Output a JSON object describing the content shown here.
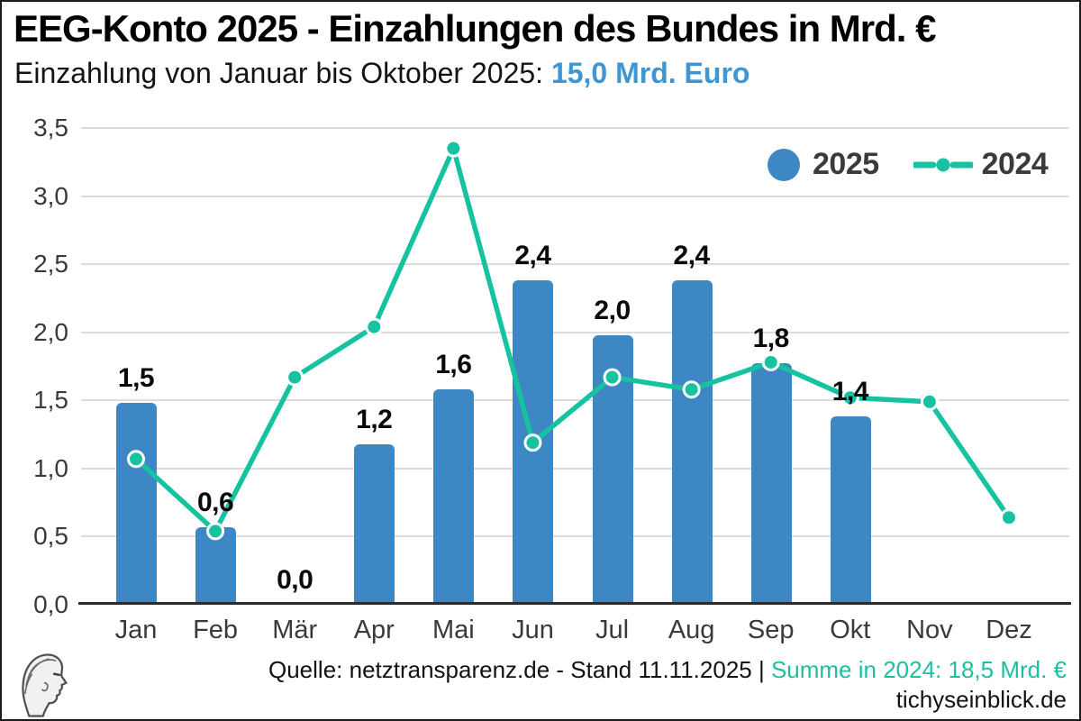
{
  "header": {
    "title": "EEG-Konto 2025 - Einzahlungen des Bundes in Mrd. €",
    "subtitle_prefix": "Einzahlung von Januar bis Oktober 2025: ",
    "subtitle_highlight": "15,0 Mrd. Euro"
  },
  "legend": {
    "label_2025": "2025",
    "label_2024": "2024"
  },
  "chart_data": {
    "type": "bar+line",
    "categories": [
      "Jan",
      "Feb",
      "Mär",
      "Apr",
      "Mai",
      "Jun",
      "Jul",
      "Aug",
      "Sep",
      "Okt",
      "Nov",
      "Dez"
    ],
    "series": [
      {
        "name": "2025",
        "type": "bar",
        "color": "#3e87c5",
        "values": [
          1.48,
          0.57,
          0.0,
          1.18,
          1.58,
          2.38,
          1.98,
          2.38,
          1.77,
          1.38,
          null,
          null
        ],
        "labels": [
          "1,5",
          "0,6",
          "0,0",
          "1,2",
          "1,6",
          "2,4",
          "2,0",
          "2,4",
          "1,8",
          "1,4",
          "",
          ""
        ]
      },
      {
        "name": "2024",
        "type": "line",
        "color": "#16c2a0",
        "values": [
          1.07,
          0.54,
          1.67,
          2.04,
          3.35,
          1.19,
          1.67,
          1.58,
          1.78,
          1.52,
          1.49,
          0.64
        ]
      }
    ],
    "title": "EEG-Konto 2025 - Einzahlungen des Bundes in Mrd. €",
    "xlabel": "",
    "ylabel": "",
    "ylim": [
      0,
      3.5
    ],
    "yticks": [
      "0,0",
      "0,5",
      "1,0",
      "1,5",
      "2,0",
      "2,5",
      "3,0",
      "3,5"
    ],
    "grid": true,
    "legend_position": "top-right",
    "sum_2025_jan_okt": "15,0",
    "sum_2024": "18,5"
  },
  "footer": {
    "source_text": "Quelle: netztransparenz.de - Stand 11.11.2025 | ",
    "summary_2024": "Summe in 2024: 18,5 Mrd. €",
    "site": "tichyseinblick.de"
  },
  "colors": {
    "bar_blue": "#3e87c5",
    "line_teal": "#16c2a0",
    "highlight_blue": "#3e96d2",
    "footer_teal": "#1cbfa0",
    "grid_gray": "#dcdcdc",
    "axis_dark": "#2b2b2b"
  }
}
